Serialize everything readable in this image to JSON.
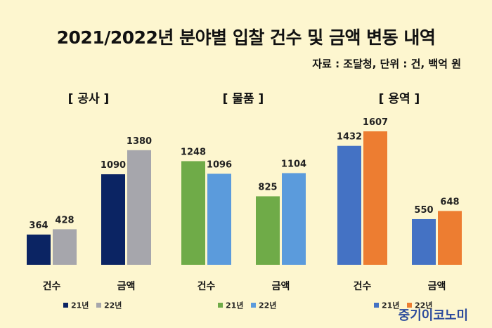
{
  "title": "2021/2022년 분야별 입찰 건수 및 금액 변동 내역",
  "source": "자료 : 조달청, 단위 : 건, 백억 원",
  "brand": "중기이코노미",
  "chart_data": [
    {
      "type": "bar",
      "title": "[ 공사 ]",
      "categories": [
        "건수",
        "금액"
      ],
      "series": [
        {
          "name": "21년",
          "values": [
            364,
            1090
          ],
          "color": "#0b2463"
        },
        {
          "name": "22년",
          "values": [
            428,
            1380
          ],
          "color": "#a6a6ac"
        }
      ]
    },
    {
      "type": "bar",
      "title": "[ 물품 ]",
      "categories": [
        "건수",
        "금액"
      ],
      "series": [
        {
          "name": "21년",
          "values": [
            1248,
            825
          ],
          "color": "#6fab48"
        },
        {
          "name": "22년",
          "values": [
            1096,
            1104
          ],
          "color": "#5b9bdc"
        }
      ]
    },
    {
      "type": "bar",
      "title": "[ 용역 ]",
      "categories": [
        "건수",
        "금액"
      ],
      "series": [
        {
          "name": "21년",
          "values": [
            1432,
            550
          ],
          "color": "#4472c4"
        },
        {
          "name": "22년",
          "values": [
            1607,
            648
          ],
          "color": "#ed7d31"
        }
      ]
    }
  ]
}
